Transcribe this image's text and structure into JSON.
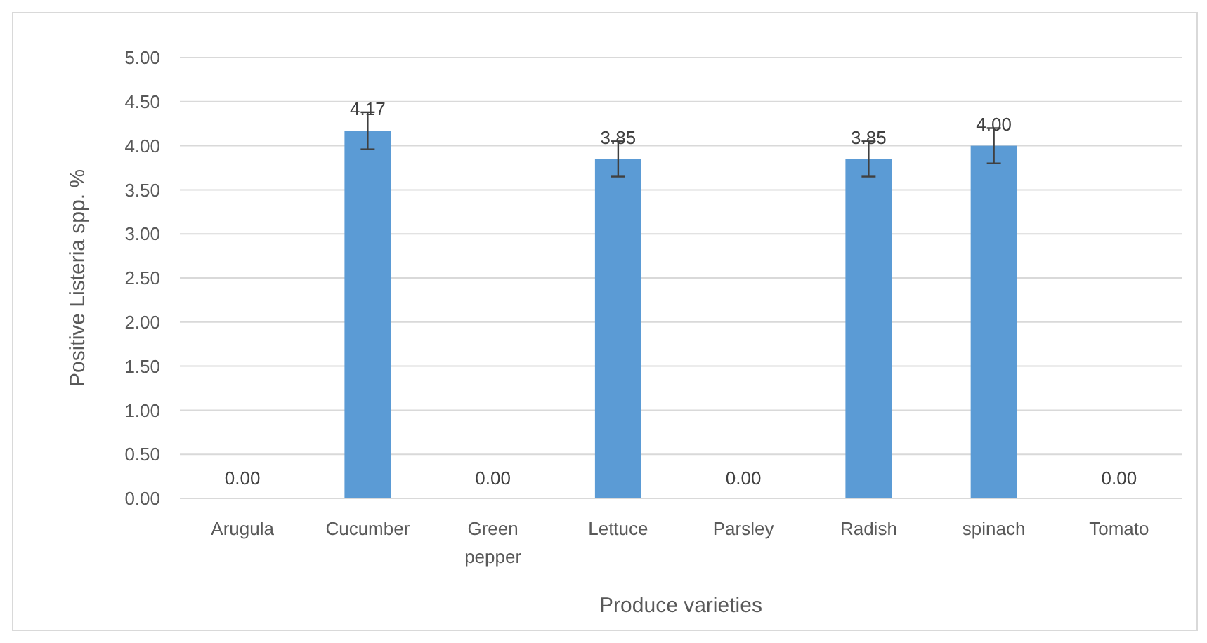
{
  "chart_data": {
    "type": "bar",
    "xlabel": "Produce varieties",
    "ylabel": "Positive Listeria spp. %",
    "categories": [
      "Arugula",
      "Cucumber",
      "Green pepper",
      "Lettuce",
      "Parsley",
      "Radish",
      "spinach",
      "Tomato"
    ],
    "values": [
      0,
      4.17,
      0,
      3.85,
      0,
      3.85,
      4,
      0
    ],
    "errors": [
      null,
      0.21,
      null,
      0.2,
      null,
      0.2,
      0.2,
      null
    ],
    "value_labels": [
      "0.00",
      "4.17",
      "0.00",
      "3.85",
      "0.00",
      "3.85",
      "4.00",
      "0.00"
    ],
    "color": "#5b9bd5",
    "ylim": [
      0,
      5
    ],
    "yticks": [
      {
        "value": 0,
        "label": "0.00"
      },
      {
        "value": 0.5,
        "label": "0.50"
      },
      {
        "value": 1,
        "label": "1.00"
      },
      {
        "value": 1.5,
        "label": "1.50"
      },
      {
        "value": 2,
        "label": "2.00"
      },
      {
        "value": 2.5,
        "label": "2.50"
      },
      {
        "value": 3,
        "label": "3.00"
      },
      {
        "value": 3.5,
        "label": "3.50"
      },
      {
        "value": 4,
        "label": "4.00"
      },
      {
        "value": 4.5,
        "label": "4.50"
      },
      {
        "value": 5,
        "label": "5.00"
      }
    ],
    "grid": "y"
  }
}
